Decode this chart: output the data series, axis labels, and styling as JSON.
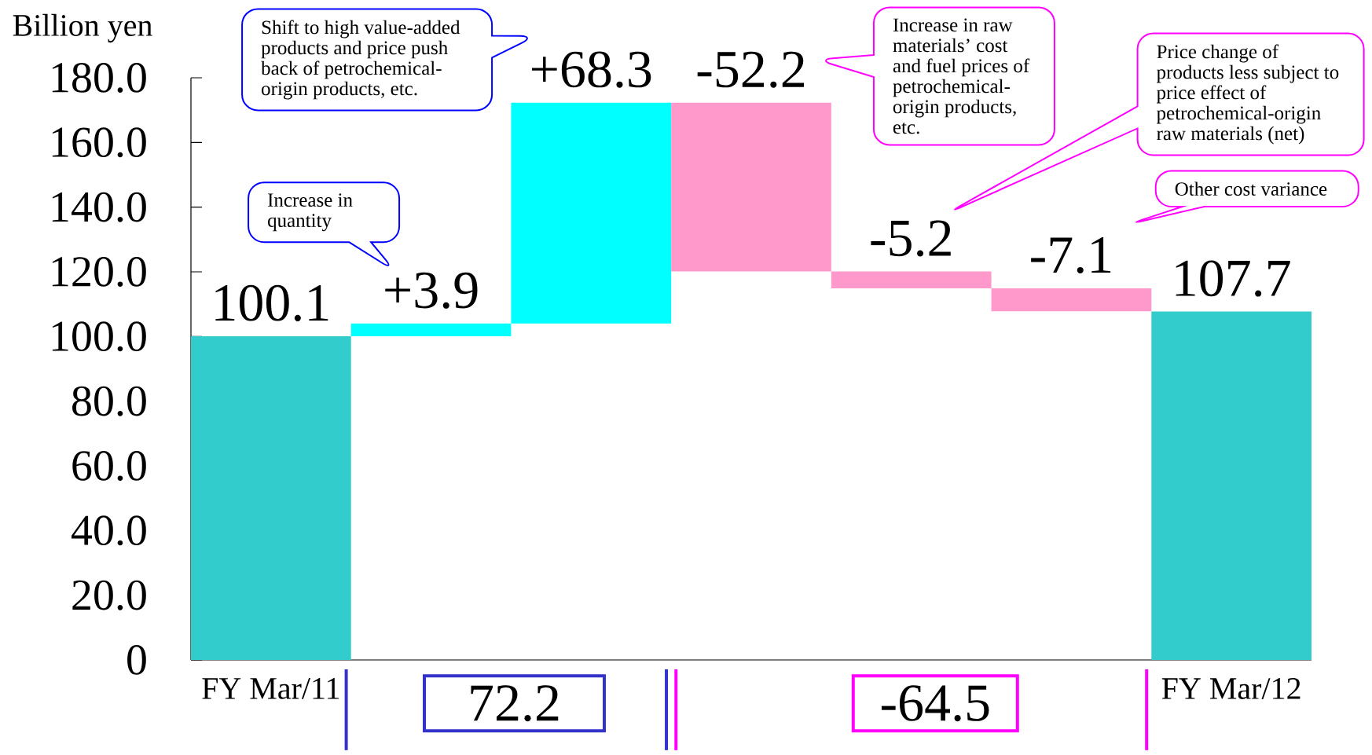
{
  "chart_data": {
    "type": "bar",
    "ylabel": "Billion yen",
    "categories": [
      "FY Mar/11",
      null,
      null,
      null,
      null,
      null,
      "FY Mar/12"
    ],
    "values": [
      100.1,
      3.9,
      68.3,
      -52.2,
      -5.2,
      -7.1,
      107.7
    ],
    "base": [
      0,
      100.1,
      104.0,
      172.3,
      120.1,
      114.9,
      0
    ],
    "colors": [
      "#33cccc",
      "#00ffff",
      "#00ffff",
      "#ff99cc",
      "#ff99cc",
      "#ff99cc",
      "#33cccc"
    ],
    "value_labels": [
      "100.1",
      "+3.9",
      "+68.3",
      "-52.2",
      "-5.2",
      "-7.1",
      "107.7"
    ],
    "ylim": [
      0,
      180
    ],
    "yticks": [
      0,
      {
        "value": 20,
        "label": "20.0"
      },
      {
        "value": 40,
        "label": "40.0"
      },
      {
        "value": 60,
        "label": "60.0"
      },
      {
        "value": 80,
        "label": "80.0"
      },
      {
        "value": 100,
        "label": "100.0"
      },
      {
        "value": 120,
        "label": "120.0"
      },
      {
        "value": 140,
        "label": "140.0"
      },
      {
        "value": 160,
        "label": "160.0"
      },
      {
        "value": 180,
        "label": "180.0"
      }
    ],
    "annotations": [
      "Shift to high value-added products and price push back of petrochemical-origin products, etc.",
      "Increase in quantity",
      "Increase in raw materials’ cost and fuel prices of petrochemical-origin products, etc.",
      "Price change of products less subject to price effect of petrochemical-origin raw materials (net)",
      "Other cost variance",
      "72.2",
      "-64.5"
    ]
  }
}
